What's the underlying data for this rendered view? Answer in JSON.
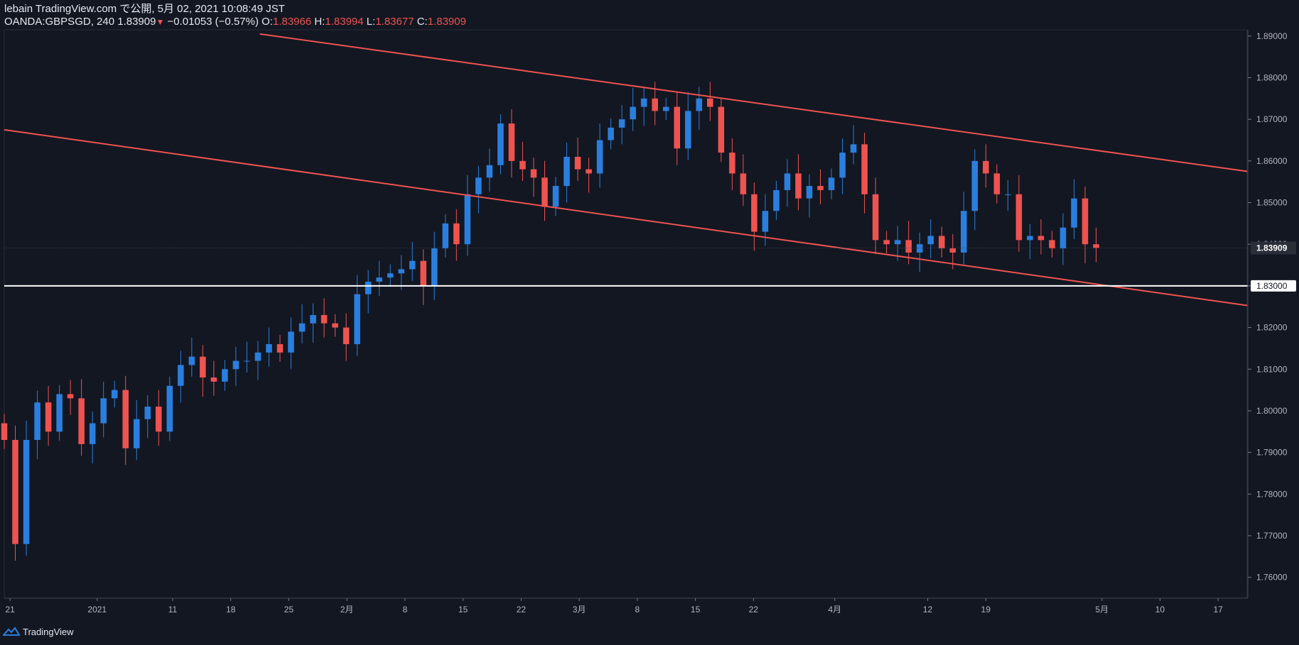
{
  "header": {
    "publish_line": "lebain TradingView.com で公開, 5月 02, 2021 10:08:49 JST",
    "symbol": "OANDA:GBPSGD, 240",
    "last": "1.83909",
    "change": "−0.01053 (−0.57%)",
    "o_label": "O:",
    "o_value": "1.83966",
    "h_label": "H:",
    "h_value": "1.83994",
    "l_label": "L:",
    "l_value": "1.83677",
    "c_label": "C:",
    "c_value": "1.83909"
  },
  "footer": {
    "brand": "TradingView"
  },
  "colors": {
    "background": "#131722",
    "up": "#2a7fde",
    "down": "#ef5350",
    "trendline": "#ef5350",
    "level": "#ffffff",
    "axis_text": "#b2b5be"
  },
  "chart_data": {
    "type": "candlestick",
    "symbol": "OANDA:GBPSGD",
    "interval": "240",
    "ylim": [
      1.755,
      1.8915
    ],
    "y_ticks": [
      "1.89000",
      "1.88000",
      "1.87000",
      "1.86000",
      "1.85000",
      "1.84000",
      "1.83000",
      "1.82000",
      "1.81000",
      "1.80000",
      "1.79000",
      "1.78000",
      "1.77000",
      "1.76000"
    ],
    "x_ticks": [
      {
        "label": "21",
        "t": 0.5
      },
      {
        "label": "2021",
        "t": 8
      },
      {
        "label": "11",
        "t": 14.5
      },
      {
        "label": "18",
        "t": 19.5
      },
      {
        "label": "25",
        "t": 24.5
      },
      {
        "label": "2月",
        "t": 29.5
      },
      {
        "label": "8",
        "t": 34.5
      },
      {
        "label": "15",
        "t": 39.5
      },
      {
        "label": "22",
        "t": 44.5
      },
      {
        "label": "3月",
        "t": 49.5
      },
      {
        "label": "8",
        "t": 54.5
      },
      {
        "label": "15",
        "t": 59.5
      },
      {
        "label": "22",
        "t": 64.5
      },
      {
        "label": "4月",
        "t": 71.5
      },
      {
        "label": "12",
        "t": 79.5
      },
      {
        "label": "19",
        "t": 84.5
      },
      {
        "label": "5月",
        "t": 94.5
      },
      {
        "label": "10",
        "t": 99.5
      },
      {
        "label": "17",
        "t": 104.5
      }
    ],
    "closes": [
      1.793,
      1.768,
      1.793,
      1.802,
      1.795,
      1.804,
      1.803,
      1.792,
      1.797,
      1.803,
      1.805,
      1.791,
      1.798,
      1.801,
      1.795,
      1.806,
      1.811,
      1.813,
      1.808,
      1.807,
      1.81,
      1.812,
      1.812,
      1.814,
      1.816,
      1.814,
      1.819,
      1.821,
      1.823,
      1.821,
      1.82,
      1.816,
      1.828,
      1.831,
      1.832,
      1.833,
      1.834,
      1.836,
      1.83,
      1.839,
      1.845,
      1.84,
      1.852,
      1.856,
      1.859,
      1.869,
      1.86,
      1.858,
      1.856,
      1.849,
      1.854,
      1.861,
      1.858,
      1.857,
      1.865,
      1.868,
      1.87,
      1.873,
      1.875,
      1.872,
      1.873,
      1.863,
      1.872,
      1.875,
      1.873,
      1.862,
      1.857,
      1.852,
      1.843,
      1.848,
      1.853,
      1.857,
      1.851,
      1.854,
      1.853,
      1.856,
      1.862,
      1.864,
      1.852,
      1.841,
      1.84,
      1.841,
      1.838,
      1.84,
      1.842,
      1.839,
      1.838,
      1.848,
      1.86,
      1.857,
      1.852,
      1.852,
      1.841,
      1.842,
      1.841,
      1.839,
      1.844,
      1.851,
      1.84,
      1.8391
    ],
    "candle_t_start": 0,
    "candle_t_end": 94,
    "channel_upper": {
      "t1": 22,
      "y1": 1.8905,
      "t2": 107,
      "y2": 1.8575
    },
    "channel_lower": {
      "t1": 0,
      "y1": 1.8675,
      "t2": 107,
      "y2": 1.8253
    },
    "horizontal_level": {
      "price": 1.83,
      "label": "1.83000"
    },
    "last_price": {
      "price": 1.83909,
      "label": "1.83909"
    }
  }
}
